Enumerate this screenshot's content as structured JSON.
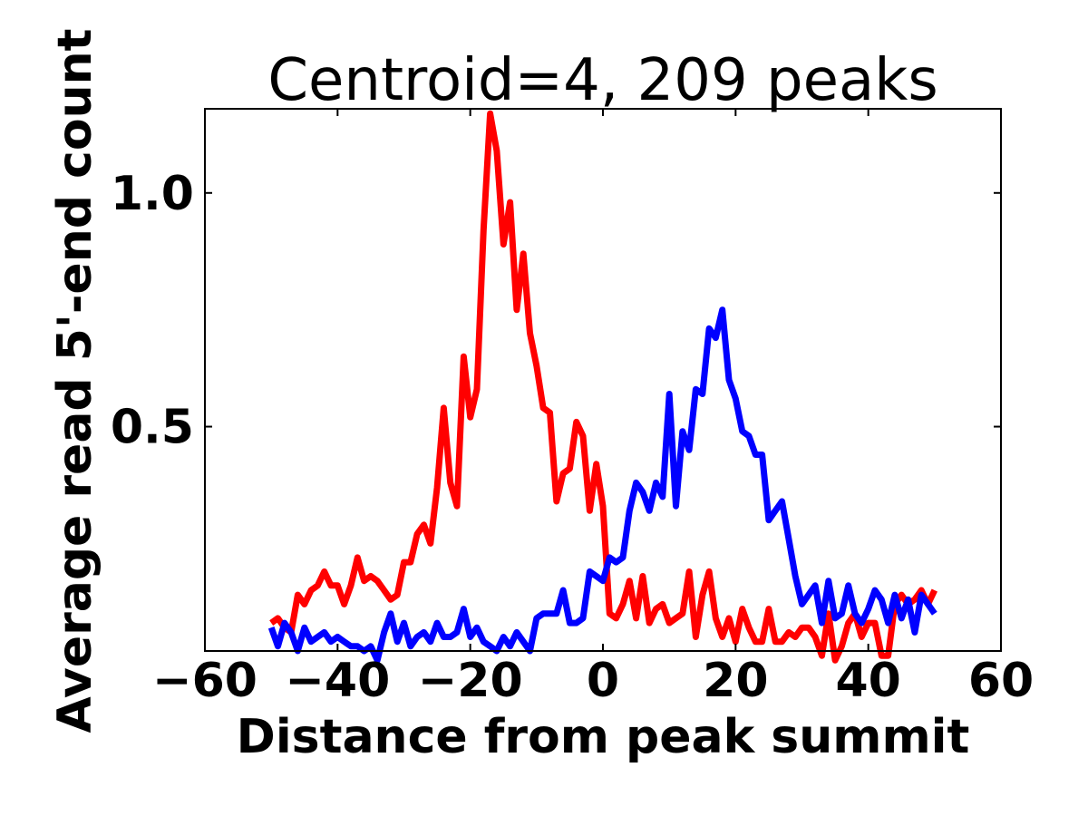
{
  "chart_data": {
    "type": "line",
    "title": "Centroid=4, 209 peaks",
    "xlabel": "Distance from peak summit",
    "ylabel": "Average read 5'-end count",
    "xlim": [
      -60,
      60
    ],
    "ylim": [
      0.02,
      1.18
    ],
    "xticks": [
      -60,
      -40,
      -20,
      0,
      20,
      40,
      60
    ],
    "xtick_labels": [
      "−60",
      "−40",
      "−20",
      "0",
      "20",
      "40",
      "60"
    ],
    "yticks": [
      0.5,
      1.0
    ],
    "ytick_labels": [
      "0.5",
      "1.0"
    ],
    "grid": false,
    "legend": "none",
    "x": [
      -50,
      -49,
      -48,
      -47,
      -46,
      -45,
      -44,
      -43,
      -42,
      -41,
      -40,
      -39,
      -38,
      -37,
      -36,
      -35,
      -34,
      -33,
      -32,
      -31,
      -30,
      -29,
      -28,
      -27,
      -26,
      -25,
      -24,
      -23,
      -22,
      -21,
      -20,
      -19,
      -18,
      -17,
      -16,
      -15,
      -14,
      -13,
      -12,
      -11,
      -10,
      -9,
      -8,
      -7,
      -6,
      -5,
      -4,
      -3,
      -2,
      -1,
      0,
      1,
      2,
      3,
      4,
      5,
      6,
      7,
      8,
      9,
      10,
      11,
      12,
      13,
      14,
      15,
      16,
      17,
      18,
      19,
      20,
      21,
      22,
      23,
      24,
      25,
      26,
      27,
      28,
      29,
      30,
      31,
      32,
      33,
      34,
      35,
      36,
      37,
      38,
      39,
      40,
      41,
      42,
      43,
      44,
      45,
      46,
      47,
      48,
      49,
      50
    ],
    "series": [
      {
        "color": "#ff0000",
        "values": [
          0.08,
          0.09,
          0.07,
          0.06,
          0.14,
          0.12,
          0.15,
          0.16,
          0.19,
          0.16,
          0.16,
          0.12,
          0.16,
          0.22,
          0.17,
          0.18,
          0.17,
          0.15,
          0.13,
          0.14,
          0.21,
          0.21,
          0.27,
          0.29,
          0.25,
          0.37,
          0.54,
          0.38,
          0.33,
          0.65,
          0.52,
          0.58,
          0.92,
          1.17,
          1.09,
          0.89,
          0.98,
          0.75,
          0.87,
          0.7,
          0.63,
          0.54,
          0.53,
          0.34,
          0.4,
          0.41,
          0.51,
          0.48,
          0.32,
          0.42,
          0.33,
          0.1,
          0.09,
          0.12,
          0.17,
          0.09,
          0.18,
          0.08,
          0.11,
          0.12,
          0.08,
          0.09,
          0.1,
          0.19,
          0.05,
          0.14,
          0.19,
          0.09,
          0.05,
          0.09,
          0.04,
          0.11,
          0.07,
          0.04,
          0.04,
          0.11,
          0.04,
          0.04,
          0.06,
          0.05,
          0.07,
          0.07,
          0.05,
          0.01,
          0.1,
          0.0,
          0.03,
          0.08,
          0.1,
          0.05,
          0.08,
          0.08,
          0.01,
          0.01,
          0.12,
          0.14,
          0.12,
          0.13,
          0.15,
          0.12,
          0.15
        ]
      },
      {
        "color": "#0000ff",
        "values": [
          0.07,
          0.03,
          0.08,
          0.06,
          0.02,
          0.07,
          0.04,
          0.05,
          0.06,
          0.04,
          0.05,
          0.04,
          0.03,
          0.03,
          0.02,
          0.03,
          0.0,
          0.06,
          0.1,
          0.04,
          0.08,
          0.03,
          0.05,
          0.06,
          0.04,
          0.08,
          0.05,
          0.05,
          0.06,
          0.11,
          0.05,
          0.07,
          0.04,
          0.03,
          0.02,
          0.05,
          0.03,
          0.06,
          0.04,
          0.02,
          0.09,
          0.1,
          0.1,
          0.1,
          0.15,
          0.08,
          0.08,
          0.09,
          0.19,
          0.18,
          0.17,
          0.22,
          0.21,
          0.22,
          0.32,
          0.38,
          0.36,
          0.32,
          0.38,
          0.35,
          0.57,
          0.33,
          0.49,
          0.45,
          0.58,
          0.57,
          0.71,
          0.69,
          0.75,
          0.6,
          0.56,
          0.49,
          0.48,
          0.44,
          0.44,
          0.3,
          0.32,
          0.34,
          0.26,
          0.18,
          0.12,
          0.14,
          0.16,
          0.08,
          0.17,
          0.09,
          0.1,
          0.16,
          0.1,
          0.08,
          0.11,
          0.15,
          0.13,
          0.08,
          0.14,
          0.09,
          0.13,
          0.06,
          0.14,
          0.12,
          0.1
        ]
      }
    ]
  }
}
